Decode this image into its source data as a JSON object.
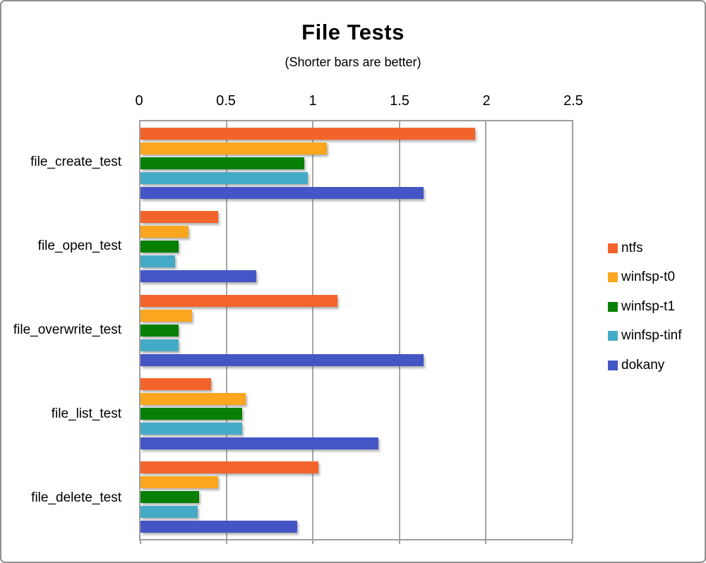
{
  "window": {
    "background": "#ffffff",
    "frame_border_color": "#8f8f8f",
    "gridline_color": "#a6a6a6"
  },
  "chart_data": {
    "type": "bar",
    "orientation": "horizontal",
    "title": "File Tests",
    "subtitle": "(Shorter bars are better)",
    "xlabel": "",
    "ylabel": "",
    "xlim": [
      0,
      2.5
    ],
    "ticks": [
      0,
      0.5,
      1,
      1.5,
      2,
      2.5
    ],
    "tick_labels": [
      "0",
      "0.5",
      "1",
      "1.5",
      "2",
      "2.5"
    ],
    "grid": true,
    "legend_position": "right",
    "categories": [
      "file_create_test",
      "file_open_test",
      "file_overwrite_test",
      "file_list_test",
      "file_delete_test"
    ],
    "series": [
      {
        "name": "ntfs",
        "color": "#F2642C",
        "values": [
          1.94,
          0.45,
          1.14,
          0.41,
          1.03
        ]
      },
      {
        "name": "winfsp-t0",
        "color": "#FAA61F",
        "values": [
          1.08,
          0.28,
          0.3,
          0.61,
          0.45
        ]
      },
      {
        "name": "winfsp-t1",
        "color": "#088006",
        "values": [
          0.95,
          0.22,
          0.22,
          0.59,
          0.34
        ]
      },
      {
        "name": "winfsp-tinf",
        "color": "#45AAC6",
        "values": [
          0.97,
          0.2,
          0.22,
          0.59,
          0.33
        ]
      },
      {
        "name": "dokany",
        "color": "#4456C5",
        "values": [
          1.64,
          0.67,
          1.64,
          1.38,
          0.91
        ]
      }
    ]
  }
}
